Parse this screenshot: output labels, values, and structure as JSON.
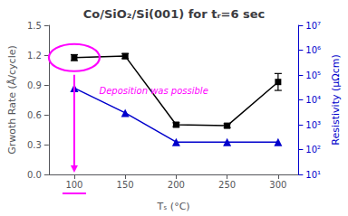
{
  "chart_data": {
    "type": "line",
    "title": "Co/SiO₂/Si(001) for tᵣ=6 sec",
    "xlabel": "Tₛ (°C)",
    "ylabel": "Grwoth Rate (Å/cycle)",
    "y2label": "Resistivity (μΩcm)",
    "x": [
      100,
      150,
      200,
      250,
      300
    ],
    "series": [
      {
        "color": "#000000",
        "marker": "square",
        "values": [
          1.175,
          1.19,
          0.5,
          0.49,
          0.93
        ],
        "errors": [
          0.03,
          0.025,
          0.02,
          0.02,
          0.085
        ]
      },
      {
        "color": "#0000CC",
        "marker": "triangle",
        "axis": "y2",
        "values": [
          30000,
          3000,
          200,
          200,
          200
        ]
      }
    ],
    "xlim": [
      75,
      320
    ],
    "xticks": [
      100,
      150,
      200,
      250,
      300
    ],
    "ylim": [
      0,
      1.5
    ],
    "yticks": [
      {
        "value": 0,
        "label": "0.0"
      },
      0.3,
      0.6,
      0.9,
      1.2,
      1.5
    ],
    "y2lim": [
      10,
      10000000
    ],
    "y2ticks": [
      {
        "value": 10,
        "label": "10¹"
      },
      {
        "value": 100,
        "label": "10²"
      },
      {
        "value": 1000,
        "label": "10³"
      },
      {
        "value": 10000,
        "label": "10⁴"
      },
      {
        "value": 100000,
        "label": "10⁵"
      },
      {
        "value": 1000000,
        "label": "10⁶"
      },
      {
        "value": 10000000,
        "label": "10⁷"
      }
    ],
    "log": "y2",
    "grid": false,
    "annotations": [
      {
        "text": "Deposition was possible",
        "x": 178,
        "y": 0.8,
        "color": "#FF00FF"
      }
    ]
  }
}
